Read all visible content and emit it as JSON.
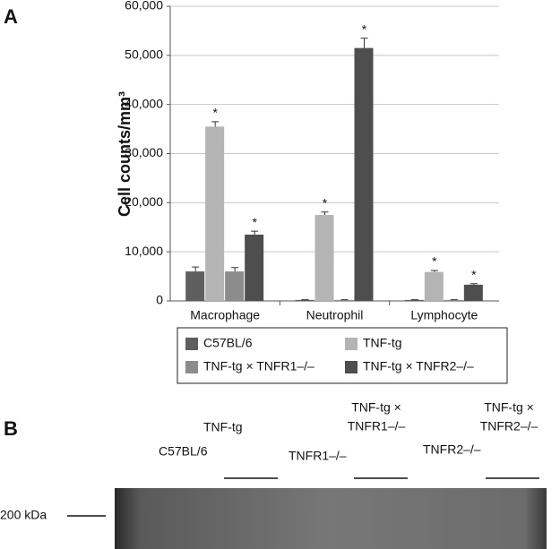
{
  "chart_data": {
    "type": "bar",
    "panel_label": "A",
    "y_label": "Cell counts/mm³",
    "categories": [
      "Macrophage",
      "Neutrophil",
      "Lymphocyte"
    ],
    "series": [
      {
        "name": "C57BL/6",
        "color": "#5e5e5e",
        "values": [
          6000,
          200,
          200
        ],
        "errors": [
          900,
          50,
          50
        ]
      },
      {
        "name": "TNF-tg",
        "color": "#b4b4b4",
        "values": [
          35500,
          17500,
          5900
        ],
        "errors": [
          1000,
          600,
          300
        ],
        "significance": [
          "*",
          "*",
          "*"
        ]
      },
      {
        "name": "TNF-tg × TNFR1–/–",
        "color": "#8c8c8c",
        "values": [
          6000,
          200,
          200
        ],
        "errors": [
          800,
          50,
          50
        ]
      },
      {
        "name": "TNF-tg × TNFR2–/–",
        "color": "#4e4e4e",
        "values": [
          13500,
          51500,
          3300
        ],
        "errors": [
          700,
          2000,
          200
        ],
        "significance": [
          "*",
          "*",
          "*"
        ]
      }
    ],
    "ylim": [
      0,
      60000
    ],
    "yticks": [
      0,
      {
        "value": 10000,
        "label": "10,000"
      },
      {
        "value": 20000,
        "label": "20,000"
      },
      {
        "value": 30000,
        "label": "30,000"
      },
      {
        "value": 40000,
        "label": "40,000"
      },
      {
        "value": 50000,
        "label": "50,000"
      },
      {
        "value": 60000,
        "label": "60,000"
      }
    ],
    "grid": true
  },
  "panel_b": {
    "label": "B",
    "marker": "200 kDa",
    "lanes": [
      [
        "C57BL/6"
      ],
      [
        "TNF-tg"
      ],
      [
        "TNFR1–/–"
      ],
      [
        "TNF-tg ×",
        "TNFR1–/–"
      ],
      [
        "TNFR2–/–"
      ],
      [
        "TNF-tg ×",
        "TNFR2–/–"
      ]
    ]
  }
}
